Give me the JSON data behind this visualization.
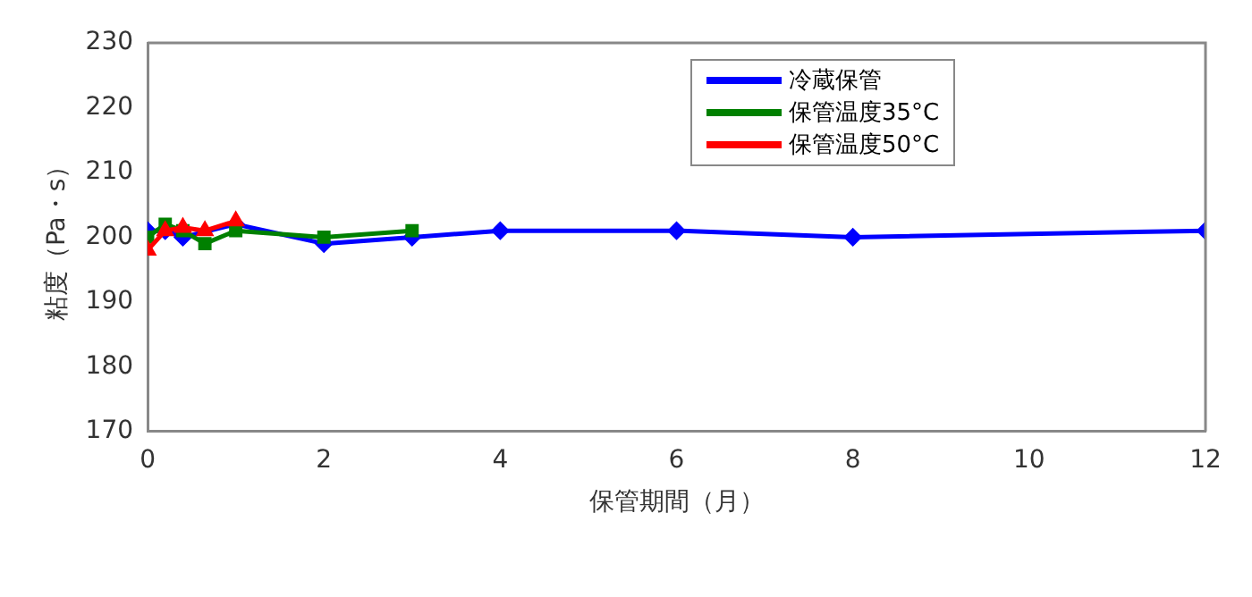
{
  "chart_data": {
    "type": "line",
    "xlabel": "保管期間（月）",
    "ylabel": "粘度（Pa・s）",
    "xlim": [
      0,
      12
    ],
    "xticks": [
      0,
      2,
      4,
      6,
      8,
      10,
      12
    ],
    "ylim": [
      170,
      230
    ],
    "yticks": [
      170,
      180,
      190,
      200,
      210,
      220,
      230
    ],
    "grid": false,
    "legend": "top right",
    "line_style": "solid",
    "series": [
      {
        "name": "冷蔵保管",
        "color": "#0000ff",
        "marker": "diamond",
        "x": [
          0,
          0.2,
          0.4,
          1,
          2,
          3,
          4,
          6,
          8,
          12
        ],
        "values": [
          201,
          201,
          200,
          202,
          199,
          200,
          201,
          201,
          200,
          201
        ]
      },
      {
        "name": "保管温度35°C",
        "color": "#008000",
        "marker": "square",
        "x": [
          0,
          0.2,
          0.4,
          0.65,
          1,
          2,
          3
        ],
        "values": [
          200,
          202,
          201,
          199,
          201,
          200,
          201
        ]
      },
      {
        "name": "保管温度50°C",
        "color": "#ff0000",
        "marker": "triangle",
        "x": [
          0,
          0.2,
          0.4,
          0.65,
          1
        ],
        "values": [
          198,
          201,
          201.5,
          201,
          202.5
        ]
      }
    ]
  }
}
